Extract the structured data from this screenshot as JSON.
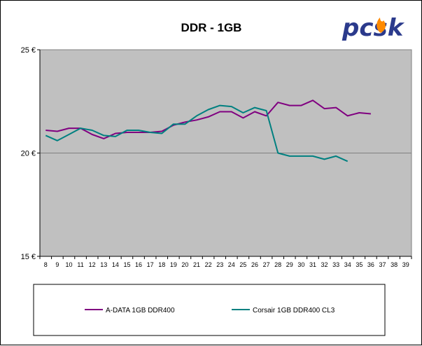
{
  "logo": {
    "text": "pcsk",
    "primary": "#2b3a8c",
    "flame": "#ff8a00"
  },
  "colors": {
    "plot_bg": "#c0c0c0",
    "grid": "#808080",
    "series_1": "#800080",
    "series_2": "#008080"
  },
  "chart_data": {
    "type": "line",
    "title": "DDR - 1GB",
    "xlabel": "",
    "ylabel": "",
    "x": [
      8,
      9,
      10,
      11,
      12,
      13,
      14,
      15,
      16,
      17,
      18,
      19,
      20,
      21,
      22,
      23,
      24,
      25,
      26,
      27,
      28,
      29,
      30,
      31,
      32,
      33,
      34,
      35,
      36,
      37,
      38,
      39
    ],
    "ylim": [
      15,
      25
    ],
    "yticks": [
      15,
      20,
      25
    ],
    "ytick_labels": [
      "15 €",
      "20 €",
      "25 €"
    ],
    "grid": {
      "horizontal": true,
      "vertical": false
    },
    "legend_position": "bottom",
    "series": [
      {
        "name": "A-DATA 1GB DDR400",
        "x": [
          8,
          9,
          10,
          11,
          12,
          13,
          14,
          15,
          16,
          17,
          18,
          19,
          20,
          21,
          22,
          23,
          24,
          25,
          26,
          27,
          28,
          29,
          30,
          31,
          32,
          33,
          34,
          35,
          36
        ],
        "values": [
          21.1,
          21.05,
          21.2,
          21.2,
          20.9,
          20.7,
          20.95,
          21.0,
          21.0,
          21.0,
          21.05,
          21.35,
          21.5,
          21.6,
          21.75,
          22.0,
          22.0,
          21.7,
          22.0,
          21.8,
          22.45,
          22.3,
          22.3,
          22.55,
          22.15,
          22.2,
          21.8,
          21.95,
          21.9
        ]
      },
      {
        "name": "Corsair 1GB DDR400 CL3",
        "x": [
          8,
          9,
          10,
          11,
          12,
          13,
          14,
          15,
          16,
          17,
          18,
          19,
          20,
          21,
          22,
          23,
          24,
          25,
          26,
          27,
          28,
          29,
          30,
          31,
          32,
          33,
          34
        ],
        "values": [
          20.85,
          20.6,
          20.9,
          21.2,
          21.1,
          20.85,
          20.8,
          21.1,
          21.1,
          21.0,
          20.95,
          21.4,
          21.4,
          21.8,
          22.1,
          22.3,
          22.25,
          21.95,
          22.2,
          22.05,
          20.0,
          19.85,
          19.85,
          19.85,
          19.7,
          19.85,
          19.6
        ]
      }
    ]
  }
}
